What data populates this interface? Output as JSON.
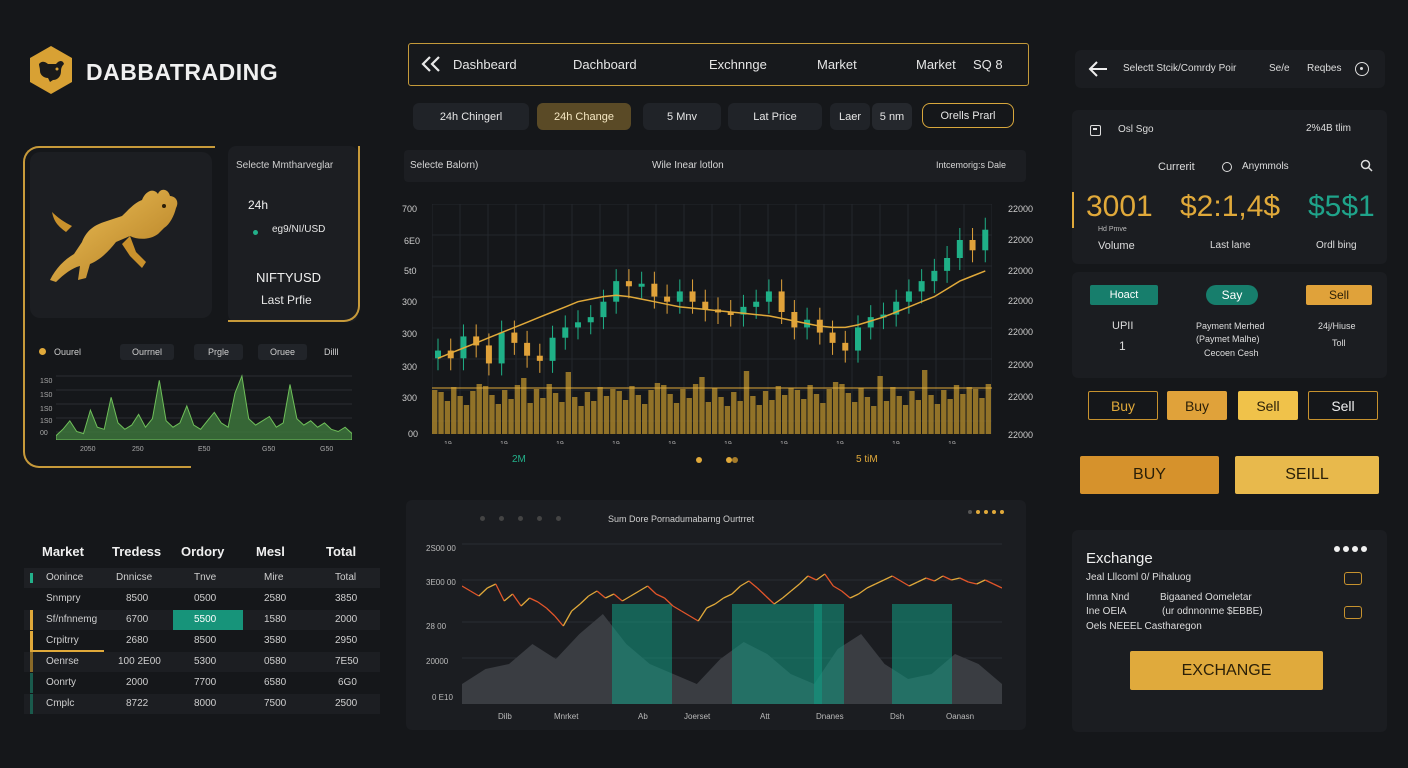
{
  "brand": {
    "name": "DABBATRADING",
    "accent": "#e0a93a",
    "teal": "#1fa38a"
  },
  "nav": {
    "back_icon": "double-chevron-left-icon",
    "items": [
      "Dashbeard",
      "Dachboard",
      "Exchnnge",
      "Market",
      "Market"
    ],
    "tail": "SQ 8"
  },
  "filters": [
    "24h Chingerl",
    "24h Change",
    "5 Mnv",
    "Lat Price",
    "Laer",
    "5 nm",
    "Orells Prarl"
  ],
  "info_card": {
    "header": "Selecte Mmtharveglar",
    "period": "24h",
    "pair_small": "eg9/NI/USD",
    "pair": "NIFTYUSD",
    "label": "Last Prfie"
  },
  "mini_chart": {
    "tabs": [
      "Ouurel",
      "Ourrnel",
      "Prgle",
      "Oruee",
      "Dilll"
    ],
    "y_labels": [
      "1S0",
      "1S0",
      "1S0",
      "1S0",
      "00"
    ],
    "x_labels": [
      "2050",
      "250",
      "E50",
      "G50",
      "G50"
    ]
  },
  "main_chart": {
    "header_left": "Selecte Balorn)",
    "header_mid": "Wile Inear lotlon",
    "header_right": "Intcemorig:s Dale",
    "y_left": [
      "700",
      "6E0",
      "5t0",
      "300",
      "300",
      "300",
      "300",
      "00"
    ],
    "y_right": [
      "22000",
      "22000",
      "22000",
      "22000",
      "22000",
      "22000",
      "22000",
      "22000"
    ],
    "legend_left": "2M",
    "legend_right": "5 tiM"
  },
  "chart_data": [
    {
      "type": "line",
      "title": "",
      "series": [
        {
          "name": "",
          "values": [
            2,
            5,
            9,
            4,
            3,
            14,
            6,
            5,
            20,
            8,
            5,
            7,
            12,
            6,
            10,
            28,
            9,
            6,
            8,
            16,
            7,
            5,
            9,
            13,
            8,
            6,
            22,
            30,
            10,
            7,
            9,
            11,
            6,
            8,
            26,
            10,
            7,
            9,
            6,
            8,
            5,
            4,
            6,
            3
          ]
        }
      ]
    },
    {
      "type": "line",
      "title": "",
      "series": [
        {
          "name": "",
          "values": [
            330,
            300,
            385,
            350,
            280,
            400,
            360,
            310,
            290,
            380,
            420,
            440,
            460,
            520,
            600,
            580,
            590,
            540,
            520,
            560,
            520,
            490,
            480,
            470,
            500,
            520,
            560,
            480,
            420,
            450,
            400,
            360,
            330,
            420,
            460,
            470,
            520,
            560,
            600,
            640,
            690,
            760,
            720,
            800
          ]
        },
        {
          "name": "",
          "values": [
            300,
            320,
            340,
            360,
            380,
            400,
            420,
            440,
            460,
            480,
            500,
            520,
            530,
            540,
            545,
            540,
            530,
            520,
            510,
            500,
            495,
            490,
            485,
            480,
            475,
            470,
            465,
            455,
            445,
            435,
            425,
            420,
            420,
            430,
            445,
            460,
            480,
            500,
            520,
            540,
            570,
            600,
            620,
            640
          ]
        }
      ]
    },
    {
      "type": "line",
      "title": "Sum Dore Pornadumabarng Ourtrret",
      "y_labels": [
        "2S00 00",
        "3E00 00",
        "28 00",
        "20000",
        "0 E10"
      ],
      "x_labels": [
        "Dilb",
        "Mnrket",
        "Ab",
        "Joerset",
        "Att",
        "Dnanes",
        "Dsh",
        "Oanasn"
      ],
      "series": [
        {
          "name": "",
          "values": [
            60,
            55,
            50,
            58,
            62,
            45,
            52,
            40,
            48,
            44,
            38,
            30,
            20,
            35,
            42,
            50,
            55,
            48,
            52,
            45,
            50,
            55,
            60,
            52,
            48,
            40,
            35,
            30,
            25,
            38,
            42,
            48,
            52,
            60,
            65,
            58,
            50,
            42,
            48,
            55,
            62,
            70,
            66,
            72,
            60,
            55,
            48,
            52,
            58,
            62,
            66,
            70,
            65,
            60,
            64,
            68,
            65,
            70,
            66,
            68,
            64,
            62,
            66,
            62,
            58
          ]
        }
      ]
    }
  ],
  "market_table": {
    "headers": [
      "Market",
      "Tredess",
      "Ordory",
      "Mesl",
      "Total"
    ],
    "sub": [
      "Oonince",
      "Dnnicse",
      "Tnve",
      "Mire",
      "Total"
    ],
    "rows": [
      [
        "Snmpry",
        "8500",
        "0500",
        "2580",
        "3850"
      ],
      [
        "Sf/nfnnemg",
        "6700",
        "5500",
        "1580",
        "2000"
      ],
      [
        "Crpitrry",
        "2680",
        "8500",
        "3580",
        "2950"
      ],
      [
        "Oenrse",
        "100 2E00",
        "5300",
        "0580",
        "7E50"
      ],
      [
        "Oonrty",
        "2000",
        "7700",
        "6580",
        "6G0"
      ],
      [
        "Cmplc",
        "8722",
        "8000",
        "7500",
        "2500"
      ]
    ]
  },
  "right": {
    "top_title": "Selectt Stcik/Comrdy Poir",
    "top_mid": "Se/e",
    "top_right": "Reqbes",
    "card_label": "Osl Sgo",
    "card_value": "2%4B tlim",
    "current": "Currerit",
    "anonmols": "Anymmols",
    "big_1": "3001",
    "big_1_small": "Hd Pmve",
    "big_1_label": "Volume",
    "big_2": "$2:1,4$",
    "big_2_label": "Last lane",
    "big_3": "$5$1",
    "big_3_label": "Ordl bing",
    "tag_1": "Hoact",
    "tag_2": "Say",
    "tag_3": "Sell",
    "col_1_a": "UPII",
    "col_1_b": "1",
    "col_2_a": "Payment Merhed",
    "col_2_b": "(Paymet Malhe)",
    "col_2_c": "Cecoen Cesh",
    "col_3_a": "24j/Hiuse",
    "col_3_b": "Toll",
    "btn_row": [
      "Buy",
      "Buy",
      "Sell",
      "Sell"
    ],
    "big_buy": "BUY",
    "big_sell": "SEILL",
    "exchange_title": "Exchange",
    "exchange_sub": "Jeal Lllcoml 0/ Pihaluog",
    "exchange_line1a": "Imna  Nnd",
    "exchange_line1b": "Bigaaned Oomeletar",
    "exchange_line2a": "Ine  OEIA",
    "exchange_line2b": "(ur odnnonme $EBBE)",
    "exchange_line3": "Oels NEEEL Castharegon",
    "exchange_btn": "EXCHANGE"
  }
}
